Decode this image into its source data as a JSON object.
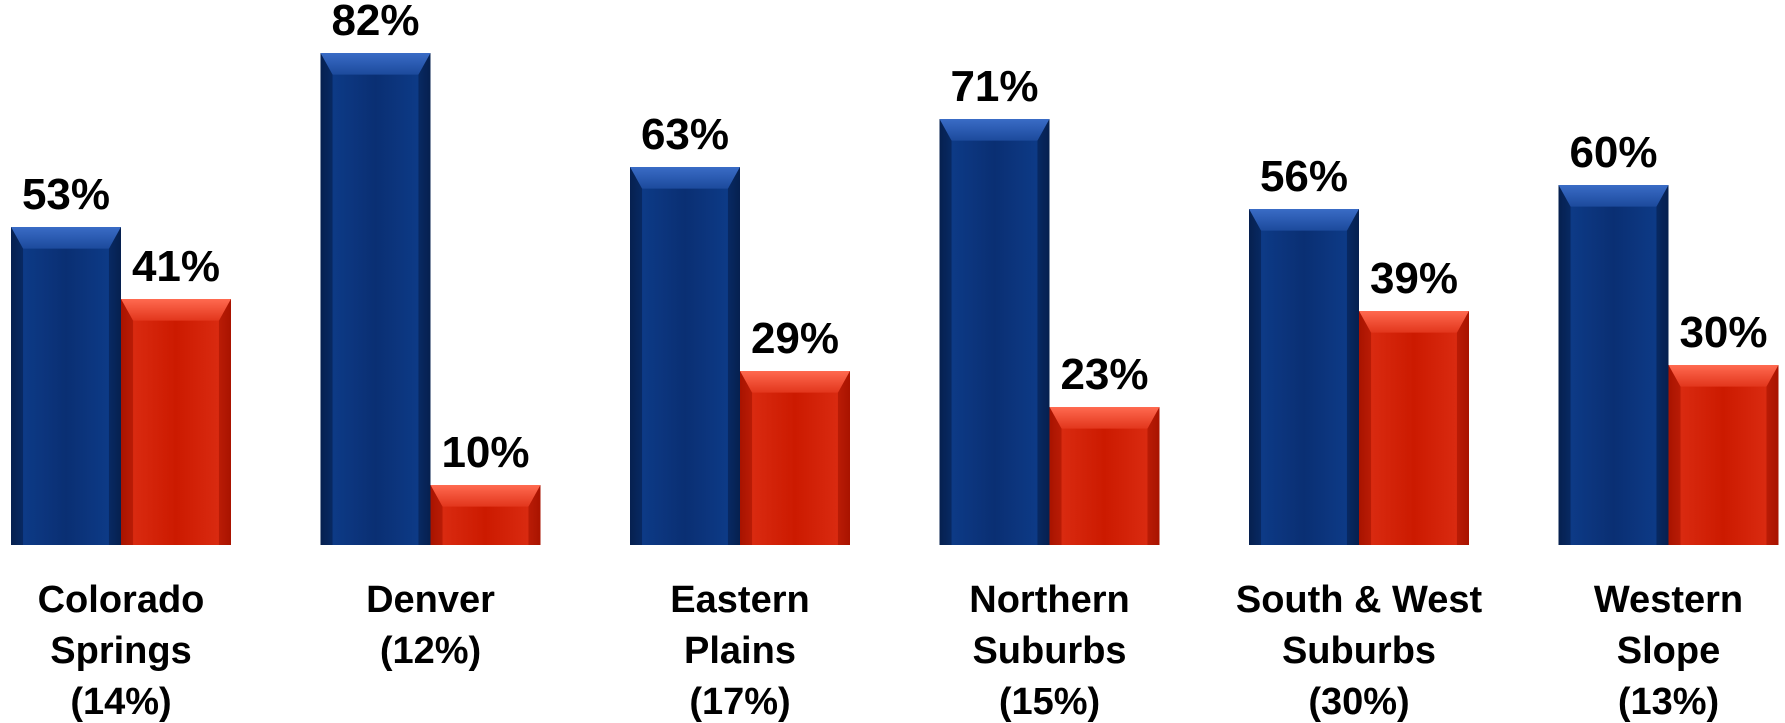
{
  "chart_data": {
    "type": "bar",
    "categories": [
      [
        "Colorado",
        "Springs",
        "(14%)"
      ],
      [
        "Denver",
        "(12%)"
      ],
      [
        "Eastern",
        "Plains",
        "(17%)"
      ],
      [
        "Northern",
        "Suburbs",
        "(15%)"
      ],
      [
        "South & West",
        "Suburbs",
        "(30%)"
      ],
      [
        "Western",
        "Slope",
        "(13%)"
      ]
    ],
    "series": [
      {
        "values": [
          53,
          82,
          63,
          71,
          56,
          60
        ],
        "labels": [
          "53%",
          "82%",
          "63%",
          "71%",
          "56%",
          "60%"
        ],
        "color": "#0b3072"
      },
      {
        "values": [
          41,
          10,
          29,
          23,
          39,
          30
        ],
        "labels": [
          "41%",
          "10%",
          "29%",
          "23%",
          "39%",
          "30%"
        ],
        "color": "#cc1a00"
      }
    ],
    "ylim": [
      0,
      100
    ],
    "grid": false,
    "legend": "none"
  }
}
